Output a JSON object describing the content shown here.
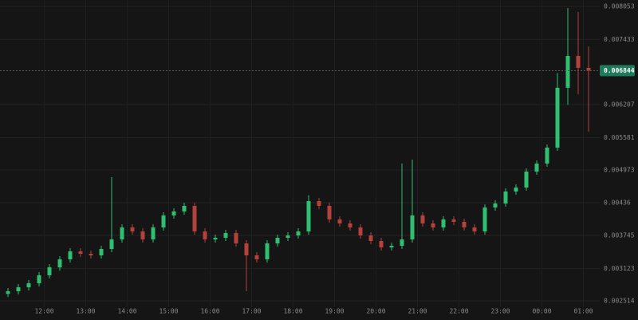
{
  "chart_data": {
    "type": "candlestick",
    "up_color": "#2fbf71",
    "down_color": "#b5413b",
    "grid": true,
    "ylim": [
      0.002153,
      0.008173
    ],
    "yticks": [
      0.008053,
      0.007433,
      0.006207,
      0.005581,
      0.004973,
      0.00436,
      0.003745,
      0.003123,
      0.002514
    ],
    "xtick_labels": [
      "12:00",
      "13:00",
      "14:00",
      "15:00",
      "16:00",
      "17:00",
      "18:00",
      "19:00",
      "20:00",
      "21:00",
      "22:00",
      "23:00",
      "00:00",
      "01:00"
    ],
    "open": [
      0.002644,
      0.002694,
      0.002769,
      0.002844,
      0.002994,
      0.003144,
      0.003294,
      0.003444,
      0.003399,
      0.003369,
      0.003489,
      0.003669,
      0.003894,
      0.003819,
      0.003669,
      0.003894,
      0.00412,
      0.004195,
      0.0043,
      0.003819,
      0.003669,
      0.003699,
      0.003789,
      0.003594,
      0.003369,
      0.003294,
      0.003594,
      0.003699,
      0.003744,
      0.003819,
      0.00439,
      0.0043,
      0.004045,
      0.00397,
      0.003894,
      0.003744,
      0.003639,
      0.003519,
      0.003549,
      0.003669,
      0.00412,
      0.00397,
      0.003894,
      0.004045,
      0.004,
      0.003894,
      0.003819,
      0.00427,
      0.004345,
      0.00457,
      0.004645,
      0.004945,
      0.005096,
      0.005396,
      0.006522,
      0.007122,
      0.006897
    ],
    "high": [
      0.002754,
      0.002829,
      0.002904,
      0.003054,
      0.003204,
      0.003354,
      0.003504,
      0.003504,
      0.003459,
      0.003549,
      0.00484,
      0.003954,
      0.003954,
      0.003879,
      0.003954,
      0.00418,
      0.004255,
      0.00436,
      0.00436,
      0.003879,
      0.003759,
      0.003849,
      0.003849,
      0.003654,
      0.003429,
      0.003654,
      0.003759,
      0.003804,
      0.003879,
      0.0045,
      0.00445,
      0.00436,
      0.004105,
      0.00403,
      0.003954,
      0.003804,
      0.003699,
      0.003609,
      0.005096,
      0.005171,
      0.00418,
      0.00403,
      0.004105,
      0.004105,
      0.00406,
      0.003954,
      0.00433,
      0.004405,
      0.00463,
      0.004705,
      0.005005,
      0.005156,
      0.005456,
      0.0068,
      0.008023,
      0.00795,
      0.0073
    ],
    "low": [
      0.002584,
      0.002634,
      0.002709,
      0.002784,
      0.002934,
      0.003084,
      0.003234,
      0.003339,
      0.003309,
      0.003309,
      0.003429,
      0.003609,
      0.003759,
      0.003609,
      0.003609,
      0.003834,
      0.00406,
      0.004135,
      0.003759,
      0.003609,
      0.003609,
      0.003639,
      0.003534,
      0.002694,
      0.003234,
      0.003234,
      0.003534,
      0.003639,
      0.003684,
      0.003759,
      0.00424,
      0.003985,
      0.00391,
      0.003834,
      0.003684,
      0.003579,
      0.003459,
      0.003459,
      0.003489,
      0.003609,
      0.00391,
      0.003834,
      0.003834,
      0.00394,
      0.003834,
      0.003759,
      0.003759,
      0.00421,
      0.004285,
      0.00451,
      0.004585,
      0.004885,
      0.005036,
      0.005336,
      0.0062,
      0.0064,
      0.005696
    ],
    "close": [
      0.002694,
      0.002769,
      0.002844,
      0.002994,
      0.003144,
      0.003294,
      0.003444,
      0.003399,
      0.003369,
      0.003489,
      0.003669,
      0.003894,
      0.003819,
      0.003669,
      0.003894,
      0.00412,
      0.004195,
      0.0043,
      0.003819,
      0.003669,
      0.003699,
      0.003789,
      0.003594,
      0.003369,
      0.003294,
      0.003594,
      0.003699,
      0.003744,
      0.003819,
      0.00439,
      0.0043,
      0.004045,
      0.00397,
      0.003894,
      0.003744,
      0.003639,
      0.003519,
      0.003549,
      0.003669,
      0.00412,
      0.00397,
      0.003894,
      0.004045,
      0.004,
      0.003894,
      0.003819,
      0.00427,
      0.004345,
      0.00457,
      0.004645,
      0.004945,
      0.005096,
      0.005396,
      0.006522,
      0.007122,
      0.006897,
      0.006844
    ]
  }
}
